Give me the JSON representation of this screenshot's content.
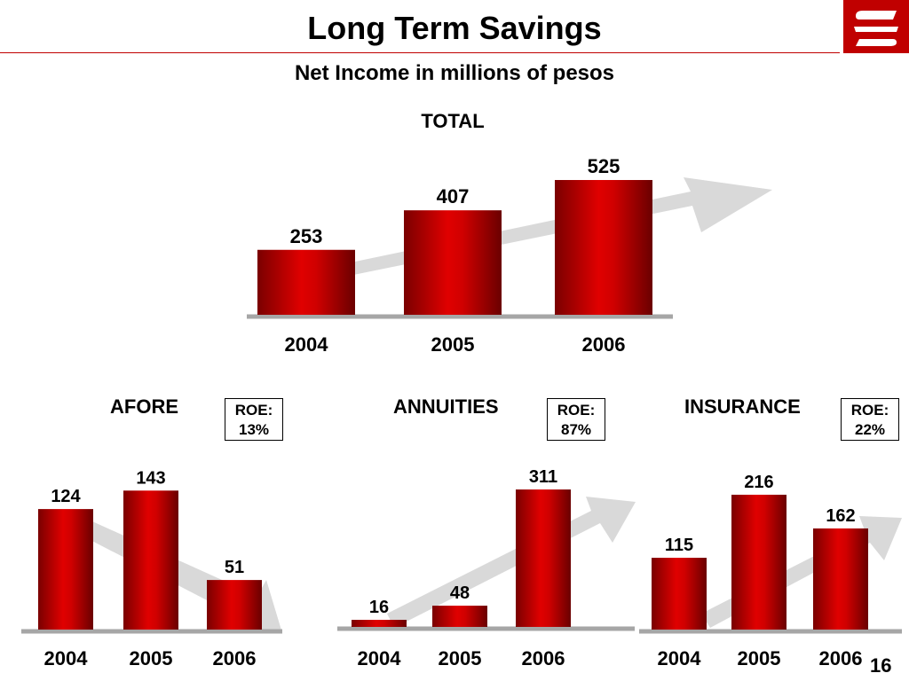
{
  "header": {
    "title": "Long Term Savings",
    "subtitle": "Net Income in millions of pesos",
    "page_number": "16"
  },
  "logo": {
    "icon": "bank-logo-icon",
    "color": "#c00000"
  },
  "colors": {
    "bar": "#c00000",
    "bar_dark": "#7a0000",
    "arrow": "#d9d9d9",
    "baseline": "#a6a6a6"
  },
  "roe": [
    {
      "label": "ROE:",
      "value": "13%"
    },
    {
      "label": "ROE:",
      "value": "87%"
    },
    {
      "label": "ROE:",
      "value": "22%"
    }
  ],
  "chart_data": [
    {
      "type": "bar",
      "title": "TOTAL",
      "categories": [
        "2004",
        "2005",
        "2006"
      ],
      "values": [
        253,
        407,
        525
      ],
      "data_labels": [
        "253",
        "407",
        "525"
      ],
      "trend_arrow": "up",
      "grid": false
    },
    {
      "type": "bar",
      "title": "AFORE",
      "categories": [
        "2004",
        "2005",
        "2006"
      ],
      "values": [
        124,
        143,
        51
      ],
      "data_labels": [
        "124",
        "143",
        "51"
      ],
      "trend_arrow": "down",
      "grid": false
    },
    {
      "type": "bar",
      "title": "ANNUITIES",
      "categories": [
        "2004",
        "2005",
        "2006"
      ],
      "values": [
        16,
        48,
        311
      ],
      "data_labels": [
        "16",
        "48",
        "311"
      ],
      "trend_arrow": "up",
      "grid": false
    },
    {
      "type": "bar",
      "title": "INSURANCE",
      "categories": [
        "2004",
        "2005",
        "2006"
      ],
      "values": [
        115,
        216,
        162
      ],
      "data_labels": [
        "115",
        "216",
        "162"
      ],
      "trend_arrow": "up",
      "grid": false
    }
  ]
}
